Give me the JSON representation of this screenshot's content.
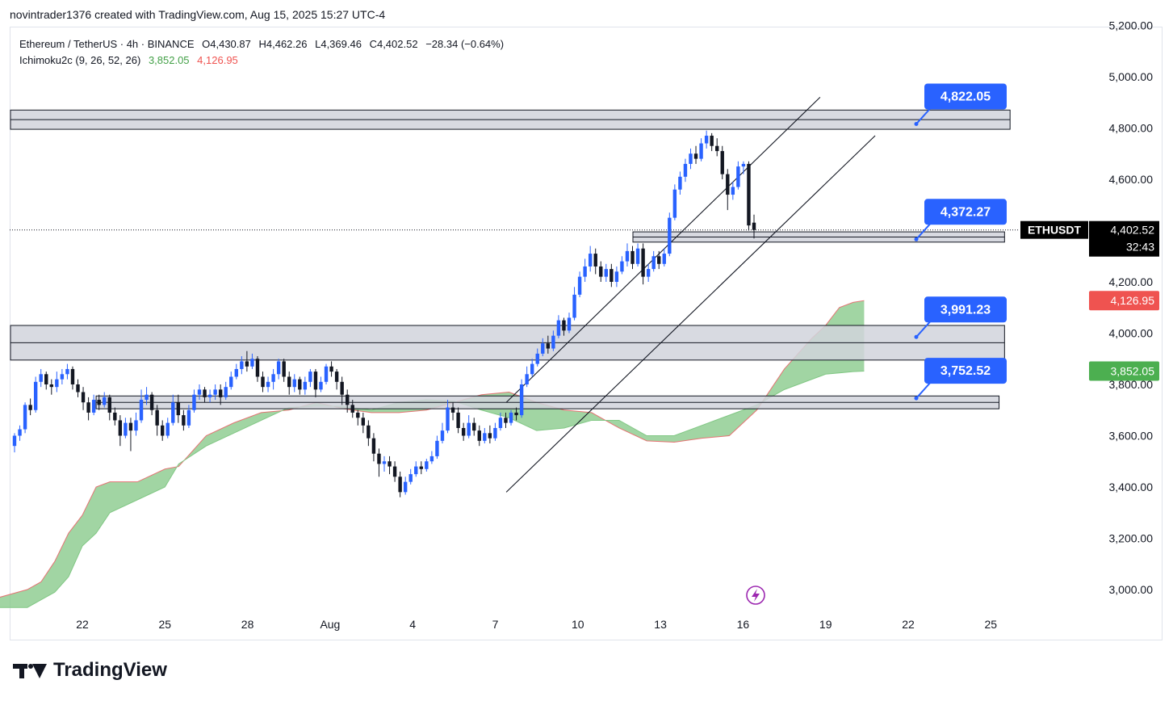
{
  "header": {
    "text": "novintrader1376 created with TradingView.com, Aug 15, 2025 15:27 UTC-4"
  },
  "legend": {
    "symbol": "Ethereum / TetherUS · 4h · BINANCE",
    "open": "O4,430.87",
    "high": "H4,462.26",
    "low": "L4,369.46",
    "close": "C4,402.52",
    "change": "−28.34 (−0.64%)",
    "indicator": "Ichimoku2c (9, 26, 52, 26)",
    "ind_val1": "3,852.05",
    "ind_val2": "4,126.95"
  },
  "footer": {
    "brand": "TradingView"
  },
  "colors": {
    "bull": "#2962ff",
    "bear": "#131722",
    "cloud": "#81c784",
    "cloud_edge": "#e57373",
    "zone_fill": "#d1d4dc",
    "zone_edge": "#131722",
    "label_bg": "#2962ff"
  },
  "chart_data": {
    "type": "candlestick",
    "title": "Ethereum / TetherUS · 4h · BINANCE",
    "ylim": [
      2930,
      5200
    ],
    "x_ticks": [
      "22",
      "25",
      "28",
      "Aug",
      "4",
      "7",
      "10",
      "13",
      "16",
      "19",
      "22",
      "25"
    ],
    "y_ticks": [
      "3,000.00",
      "3,200.00",
      "3,400.00",
      "3,600.00",
      "3,800.00",
      "4,000.00",
      "4,200.00",
      "4,600.00",
      "4,800.00",
      "5,000.00",
      "5,200.00"
    ],
    "y_tick_values": [
      3000,
      3200,
      3400,
      3600,
      3800,
      4000,
      4200,
      4600,
      4800,
      5000,
      5200
    ],
    "last_price": {
      "symbol": "ETHUSDT",
      "price": "4,402.52",
      "countdown": "32:43",
      "value": 4402.52
    },
    "ichimoku_labels": [
      {
        "text": "4,126.95",
        "value": 4126.95,
        "color": "#ef5350"
      },
      {
        "text": "3,852.05",
        "value": 3852.05,
        "color": "#4caf50"
      }
    ],
    "zones": [
      {
        "low": 4795,
        "high": 4870,
        "from_day": -2.9,
        "to_day": 33.7
      },
      {
        "low": 4355,
        "high": 4395,
        "from_day": 20.0,
        "to_day": 33.5
      },
      {
        "low": 3895,
        "high": 4030,
        "from_day": -2.9,
        "to_day": 33.5
      },
      {
        "low": 3705,
        "high": 3755,
        "from_day": 0.5,
        "to_day": 33.3
      }
    ],
    "price_labels": [
      {
        "text": "4,822.05",
        "value": 4822.05
      },
      {
        "text": "4,372.27",
        "value": 4372.27
      },
      {
        "text": "3,991.23",
        "value": 3991.23
      },
      {
        "text": "3,752.52",
        "value": 3752.52
      }
    ],
    "channel": {
      "upper": [
        [
          15.4,
          3730
        ],
        [
          26.8,
          4920
        ]
      ],
      "lower": [
        [
          15.4,
          3380
        ],
        [
          28.8,
          4770
        ]
      ]
    },
    "candles": [
      [
        3560,
        3600,
        3535,
        3610
      ],
      [
        3600,
        3625,
        3580,
        3640
      ],
      [
        3625,
        3720,
        3610,
        3730
      ],
      [
        3720,
        3700,
        3680,
        3745
      ],
      [
        3700,
        3810,
        3690,
        3830
      ],
      [
        3810,
        3840,
        3790,
        3860
      ],
      [
        3840,
        3800,
        3780,
        3850
      ],
      [
        3800,
        3790,
        3760,
        3820
      ],
      [
        3790,
        3820,
        3770,
        3850
      ],
      [
        3820,
        3840,
        3800,
        3860
      ],
      [
        3840,
        3860,
        3820,
        3880
      ],
      [
        3860,
        3800,
        3780,
        3870
      ],
      [
        3800,
        3770,
        3750,
        3820
      ],
      [
        3770,
        3730,
        3700,
        3790
      ],
      [
        3730,
        3690,
        3660,
        3750
      ],
      [
        3690,
        3740,
        3680,
        3760
      ],
      [
        3740,
        3720,
        3700,
        3760
      ],
      [
        3720,
        3750,
        3710,
        3770
      ],
      [
        3750,
        3690,
        3660,
        3760
      ],
      [
        3690,
        3660,
        3640,
        3710
      ],
      [
        3660,
        3600,
        3560,
        3680
      ],
      [
        3600,
        3650,
        3590,
        3670
      ],
      [
        3650,
        3620,
        3540,
        3670
      ],
      [
        3620,
        3660,
        3600,
        3690
      ],
      [
        3660,
        3740,
        3650,
        3780
      ],
      [
        3740,
        3760,
        3720,
        3790
      ],
      [
        3760,
        3700,
        3680,
        3770
      ],
      [
        3700,
        3640,
        3600,
        3720
      ],
      [
        3640,
        3600,
        3580,
        3660
      ],
      [
        3600,
        3650,
        3590,
        3670
      ],
      [
        3650,
        3730,
        3640,
        3760
      ],
      [
        3730,
        3680,
        3650,
        3760
      ],
      [
        3680,
        3640,
        3620,
        3700
      ],
      [
        3640,
        3700,
        3630,
        3720
      ],
      [
        3700,
        3760,
        3690,
        3780
      ],
      [
        3760,
        3780,
        3740,
        3800
      ],
      [
        3780,
        3750,
        3730,
        3790
      ],
      [
        3750,
        3760,
        3730,
        3780
      ],
      [
        3760,
        3780,
        3740,
        3800
      ],
      [
        3780,
        3750,
        3720,
        3800
      ],
      [
        3750,
        3790,
        3740,
        3810
      ],
      [
        3790,
        3830,
        3780,
        3850
      ],
      [
        3830,
        3860,
        3820,
        3880
      ],
      [
        3860,
        3890,
        3840,
        3910
      ],
      [
        3890,
        3870,
        3850,
        3930
      ],
      [
        3870,
        3900,
        3860,
        3920
      ],
      [
        3900,
        3830,
        3810,
        3910
      ],
      [
        3830,
        3790,
        3770,
        3850
      ],
      [
        3790,
        3810,
        3770,
        3830
      ],
      [
        3810,
        3840,
        3780,
        3860
      ],
      [
        3840,
        3890,
        3820,
        3900
      ],
      [
        3890,
        3830,
        3810,
        3900
      ],
      [
        3830,
        3790,
        3760,
        3850
      ],
      [
        3790,
        3820,
        3770,
        3840
      ],
      [
        3820,
        3780,
        3760,
        3830
      ],
      [
        3780,
        3810,
        3760,
        3830
      ],
      [
        3810,
        3850,
        3790,
        3860
      ],
      [
        3850,
        3780,
        3750,
        3860
      ],
      [
        3780,
        3810,
        3770,
        3830
      ],
      [
        3810,
        3870,
        3800,
        3880
      ],
      [
        3870,
        3850,
        3830,
        3890
      ],
      [
        3850,
        3810,
        3780,
        3860
      ],
      [
        3810,
        3760,
        3720,
        3830
      ],
      [
        3760,
        3720,
        3690,
        3780
      ],
      [
        3720,
        3690,
        3670,
        3740
      ],
      [
        3690,
        3670,
        3640,
        3700
      ],
      [
        3670,
        3640,
        3610,
        3690
      ],
      [
        3640,
        3590,
        3560,
        3660
      ],
      [
        3590,
        3530,
        3500,
        3610
      ],
      [
        3530,
        3490,
        3440,
        3550
      ],
      [
        3490,
        3500,
        3460,
        3520
      ],
      [
        3500,
        3480,
        3450,
        3520
      ],
      [
        3480,
        3440,
        3420,
        3500
      ],
      [
        3440,
        3380,
        3360,
        3460
      ],
      [
        3380,
        3420,
        3370,
        3440
      ],
      [
        3420,
        3450,
        3410,
        3470
      ],
      [
        3450,
        3480,
        3440,
        3500
      ],
      [
        3480,
        3470,
        3450,
        3500
      ],
      [
        3470,
        3500,
        3460,
        3510
      ],
      [
        3500,
        3520,
        3490,
        3540
      ],
      [
        3520,
        3580,
        3510,
        3600
      ],
      [
        3580,
        3620,
        3570,
        3650
      ],
      [
        3620,
        3710,
        3610,
        3740
      ],
      [
        3710,
        3690,
        3660,
        3730
      ],
      [
        3690,
        3630,
        3610,
        3710
      ],
      [
        3630,
        3600,
        3580,
        3650
      ],
      [
        3600,
        3650,
        3590,
        3680
      ],
      [
        3650,
        3620,
        3600,
        3670
      ],
      [
        3620,
        3580,
        3560,
        3640
      ],
      [
        3580,
        3610,
        3570,
        3630
      ],
      [
        3610,
        3590,
        3570,
        3640
      ],
      [
        3590,
        3630,
        3580,
        3650
      ],
      [
        3630,
        3670,
        3620,
        3690
      ],
      [
        3670,
        3650,
        3630,
        3690
      ],
      [
        3650,
        3690,
        3640,
        3700
      ],
      [
        3690,
        3680,
        3660,
        3710
      ],
      [
        3680,
        3800,
        3670,
        3820
      ],
      [
        3800,
        3840,
        3790,
        3870
      ],
      [
        3840,
        3880,
        3830,
        3900
      ],
      [
        3880,
        3920,
        3870,
        3940
      ],
      [
        3920,
        3960,
        3910,
        3980
      ],
      [
        3960,
        3940,
        3920,
        3990
      ],
      [
        3940,
        3990,
        3930,
        4010
      ],
      [
        3990,
        4050,
        3980,
        4070
      ],
      [
        4050,
        4010,
        3990,
        4060
      ],
      [
        4010,
        4060,
        4000,
        4080
      ],
      [
        4060,
        4150,
        4050,
        4180
      ],
      [
        4150,
        4220,
        4140,
        4240
      ],
      [
        4220,
        4260,
        4200,
        4290
      ],
      [
        4260,
        4310,
        4240,
        4340
      ],
      [
        4310,
        4260,
        4230,
        4330
      ],
      [
        4260,
        4220,
        4200,
        4280
      ],
      [
        4220,
        4250,
        4200,
        4270
      ],
      [
        4250,
        4200,
        4180,
        4270
      ],
      [
        4200,
        4240,
        4180,
        4260
      ],
      [
        4240,
        4280,
        4230,
        4300
      ],
      [
        4280,
        4320,
        4260,
        4350
      ],
      [
        4320,
        4270,
        4250,
        4340
      ],
      [
        4270,
        4330,
        4260,
        4350
      ],
      [
        4330,
        4220,
        4190,
        4350
      ],
      [
        4220,
        4250,
        4200,
        4270
      ],
      [
        4250,
        4300,
        4240,
        4320
      ],
      [
        4300,
        4270,
        4250,
        4320
      ],
      [
        4270,
        4310,
        4260,
        4330
      ],
      [
        4310,
        4450,
        4300,
        4470
      ],
      [
        4450,
        4560,
        4440,
        4580
      ],
      [
        4560,
        4610,
        4540,
        4630
      ],
      [
        4610,
        4660,
        4590,
        4680
      ],
      [
        4660,
        4700,
        4640,
        4720
      ],
      [
        4700,
        4680,
        4660,
        4730
      ],
      [
        4680,
        4740,
        4670,
        4760
      ],
      [
        4740,
        4770,
        4720,
        4790
      ],
      [
        4770,
        4730,
        4710,
        4780
      ],
      [
        4730,
        4710,
        4690,
        4760
      ],
      [
        4710,
        4620,
        4600,
        4730
      ],
      [
        4620,
        4540,
        4480,
        4640
      ],
      [
        4540,
        4570,
        4520,
        4590
      ],
      [
        4570,
        4650,
        4560,
        4670
      ],
      [
        4650,
        4660,
        4620,
        4670
      ],
      [
        4660,
        4420,
        4400,
        4670
      ],
      [
        4430.87,
        4402.52,
        4369.46,
        4462.26
      ]
    ],
    "cloud_upper": [
      [
        -3.0,
        2970
      ],
      [
        -2.0,
        3000
      ],
      [
        -1.5,
        3030
      ],
      [
        -1.0,
        3110
      ],
      [
        -0.5,
        3220
      ],
      [
        0.0,
        3290
      ],
      [
        0.5,
        3400
      ],
      [
        1.0,
        3420
      ],
      [
        2.0,
        3420
      ],
      [
        3.0,
        3470
      ],
      [
        3.5,
        3480
      ],
      [
        4.5,
        3600
      ],
      [
        5.5,
        3650
      ],
      [
        6.5,
        3690
      ],
      [
        7.5,
        3700
      ],
      [
        8.5,
        3730
      ],
      [
        9.5,
        3705
      ],
      [
        10.5,
        3690
      ],
      [
        11.5,
        3690
      ],
      [
        12.5,
        3700
      ],
      [
        13.5,
        3730
      ],
      [
        14.5,
        3760
      ],
      [
        15.5,
        3770
      ],
      [
        16.5,
        3730
      ],
      [
        17.5,
        3700
      ],
      [
        18.5,
        3690
      ],
      [
        19.5,
        3630
      ],
      [
        20.5,
        3580
      ],
      [
        21.5,
        3575
      ],
      [
        22.5,
        3590
      ],
      [
        23.5,
        3600
      ],
      [
        24.5,
        3700
      ],
      [
        25.5,
        3860
      ],
      [
        26.5,
        3980
      ],
      [
        27.0,
        4030
      ],
      [
        27.5,
        4100
      ],
      [
        28.0,
        4120
      ],
      [
        28.4,
        4126.95
      ]
    ],
    "cloud_lower": [
      [
        -3.0,
        2930
      ],
      [
        -2.0,
        2930
      ],
      [
        -1.5,
        2960
      ],
      [
        -1.0,
        2990
      ],
      [
        -0.5,
        3050
      ],
      [
        0.0,
        3170
      ],
      [
        0.5,
        3220
      ],
      [
        1.0,
        3300
      ],
      [
        2.0,
        3350
      ],
      [
        3.0,
        3400
      ],
      [
        3.5,
        3490
      ],
      [
        4.5,
        3560
      ],
      [
        5.5,
        3610
      ],
      [
        6.5,
        3660
      ],
      [
        7.5,
        3710
      ],
      [
        8.5,
        3715
      ],
      [
        9.5,
        3715
      ],
      [
        10.5,
        3700
      ],
      [
        11.5,
        3730
      ],
      [
        12.5,
        3740
      ],
      [
        13.5,
        3735
      ],
      [
        14.5,
        3700
      ],
      [
        15.5,
        3670
      ],
      [
        16.5,
        3620
      ],
      [
        17.5,
        3630
      ],
      [
        18.5,
        3660
      ],
      [
        19.5,
        3660
      ],
      [
        20.5,
        3600
      ],
      [
        21.5,
        3600
      ],
      [
        22.5,
        3640
      ],
      [
        23.5,
        3680
      ],
      [
        24.5,
        3720
      ],
      [
        25.5,
        3780
      ],
      [
        26.5,
        3820
      ],
      [
        27.0,
        3840
      ],
      [
        27.5,
        3845
      ],
      [
        28.0,
        3850
      ],
      [
        28.4,
        3852.05
      ]
    ]
  }
}
